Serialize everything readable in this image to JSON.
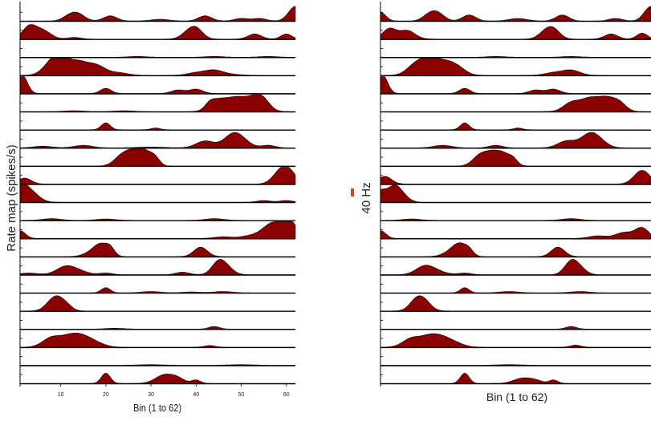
{
  "colors": {
    "fill": "#8b0000",
    "stroke": "#1a0000",
    "axis": "#000000",
    "scalebar": "#c0501a"
  },
  "chart_data": [
    {
      "type": "area",
      "title": "",
      "xlabel": "Bin (1 to 62)",
      "ylabel": "Rate map (spikes/s)",
      "xlim": [
        1,
        62
      ],
      "xticks": [
        10,
        20,
        30,
        40,
        50,
        60
      ],
      "grid": false,
      "row_ymax": 1,
      "series": [
        {
          "peaks": [
            [
              12,
              0.3,
              1.5
            ],
            [
              14,
              0.35,
              1.5
            ],
            [
              21,
              0.3,
              1.5
            ],
            [
              32,
              0.1,
              2
            ],
            [
              42,
              0.3,
              1.5
            ],
            [
              50,
              0.15,
              1.5
            ],
            [
              54,
              0.15,
              1.5
            ],
            [
              62,
              0.85,
              1.5
            ]
          ]
        },
        {
          "peaks": [
            [
              3,
              0.7,
              1.5
            ],
            [
              6,
              0.5,
              1.8
            ],
            [
              13,
              0.1,
              1.5
            ],
            [
              38,
              0.3,
              1.5
            ],
            [
              40,
              0.6,
              1.5
            ],
            [
              53,
              0.3,
              1.5
            ],
            [
              60,
              0.3,
              1.2
            ]
          ]
        },
        {
          "peaks": [
            [
              27,
              0.05,
              2
            ],
            [
              44,
              0.05,
              2
            ],
            [
              56,
              0.05,
              2
            ]
          ]
        },
        {
          "peaks": [
            [
              8,
              0.55,
              2
            ],
            [
              10,
              0.8,
              2
            ],
            [
              14,
              0.7,
              2
            ],
            [
              18,
              0.55,
              2
            ],
            [
              23,
              0.15,
              2
            ],
            [
              40,
              0.15,
              2
            ],
            [
              44,
              0.3,
              2
            ],
            [
              48,
              0.05,
              2
            ]
          ]
        },
        {
          "peaks": [
            [
              1,
              0.8,
              1.2
            ],
            [
              2,
              0.4,
              1
            ],
            [
              20,
              0.3,
              1.2
            ],
            [
              36,
              0.2,
              1.5
            ],
            [
              40,
              0.25,
              1.5
            ]
          ]
        },
        {
          "peaks": [
            [
              43,
              0.25,
              1
            ],
            [
              45,
              0.65,
              2
            ],
            [
              49,
              0.7,
              2
            ],
            [
              53,
              0.75,
              2
            ],
            [
              55,
              0.4,
              1.5
            ],
            [
              13,
              0.05,
              2
            ],
            [
              24,
              0.05,
              2
            ]
          ]
        },
        {
          "peaks": [
            [
              20,
              0.4,
              1
            ],
            [
              31,
              0.1,
              1
            ]
          ]
        },
        {
          "peaks": [
            [
              6,
              0.1,
              2
            ],
            [
              15,
              0.15,
              2
            ],
            [
              30,
              0.05,
              3
            ],
            [
              42,
              0.4,
              2
            ],
            [
              48,
              0.65,
              2
            ],
            [
              50,
              0.35,
              2
            ],
            [
              56,
              0.15,
              1.5
            ]
          ]
        },
        {
          "peaks": [
            [
              23,
              0.35,
              1.5
            ],
            [
              26,
              0.9,
              2
            ],
            [
              29,
              0.6,
              1.5
            ],
            [
              31,
              0.35,
              1
            ]
          ]
        },
        {
          "peaks": [
            [
              2,
              0.35,
              1.5
            ],
            [
              59,
              0.85,
              1.8
            ],
            [
              61,
              0.4,
              1.5
            ]
          ]
        },
        {
          "peaks": [
            [
              1,
              0.9,
              1.2
            ],
            [
              3,
              0.6,
              1.5
            ],
            [
              5,
              0.15,
              1.5
            ],
            [
              55,
              0.1,
              1.5
            ],
            [
              60,
              0.1,
              1.5
            ]
          ]
        },
        {
          "peaks": [
            [
              8,
              0.1,
              2
            ],
            [
              20,
              0.08,
              2
            ],
            [
              44,
              0.1,
              2
            ]
          ]
        },
        {
          "peaks": [
            [
              1,
              0.45,
              1.2
            ],
            [
              46,
              0.1,
              2
            ],
            [
              52,
              0.15,
              2
            ],
            [
              56,
              0.45,
              2
            ],
            [
              58,
              0.6,
              2
            ],
            [
              61,
              0.85,
              1.5
            ]
          ]
        },
        {
          "peaks": [
            [
              17,
              0.25,
              1.8
            ],
            [
              19,
              0.6,
              1.5
            ],
            [
              21,
              0.4,
              1
            ],
            [
              41,
              0.55,
              1.5
            ]
          ]
        },
        {
          "peaks": [
            [
              3,
              0.1,
              2
            ],
            [
              11,
              0.45,
              2
            ],
            [
              14,
              0.2,
              2
            ],
            [
              20,
              0.1,
              1.5
            ],
            [
              37,
              0.15,
              1.5
            ],
            [
              45,
              0.75,
              1.5
            ],
            [
              47,
              0.3,
              1.5
            ]
          ]
        },
        {
          "peaks": [
            [
              20,
              0.3,
              1
            ],
            [
              30,
              0.08,
              2
            ],
            [
              39,
              0.05,
              2
            ],
            [
              46,
              0.08,
              2
            ]
          ]
        },
        {
          "peaks": [
            [
              8,
              0.5,
              1.5
            ],
            [
              10,
              0.6,
              1.5
            ],
            [
              12,
              0.1,
              1
            ]
          ]
        },
        {
          "peaks": [
            [
              22,
              0.05,
              2
            ],
            [
              44,
              0.15,
              1.2
            ]
          ]
        },
        {
          "peaks": [
            [
              8,
              0.55,
              2
            ],
            [
              12,
              0.55,
              2
            ],
            [
              15,
              0.5,
              2
            ],
            [
              18,
              0.2,
              2
            ],
            [
              43,
              0.1,
              1.2
            ]
          ]
        },
        {
          "peaks": [
            [
              30,
              0.04,
              3
            ],
            [
              50,
              0.04,
              3
            ]
          ]
        },
        {
          "peaks": [
            [
              20,
              0.6,
              1
            ],
            [
              33,
              0.5,
              2
            ],
            [
              36,
              0.25,
              1.5
            ],
            [
              40,
              0.2,
              1
            ]
          ]
        }
      ]
    },
    {
      "type": "area",
      "title": "",
      "xlabel": "Bin (1 to 62)",
      "ylabel": "",
      "xlim": [
        1,
        62
      ],
      "xticks": [],
      "grid": false,
      "row_ymax": 1,
      "scalebar_label": "40 Hz",
      "series": [
        {
          "peaks": [
            [
              1,
              0.5,
              1.2
            ],
            [
              12,
              0.35,
              1.5
            ],
            [
              14,
              0.4,
              1.5
            ],
            [
              21,
              0.35,
              1.5
            ],
            [
              32,
              0.15,
              2
            ],
            [
              42,
              0.35,
              1.5
            ],
            [
              54,
              0.15,
              1.5
            ],
            [
              62,
              0.85,
              1.5
            ]
          ]
        },
        {
          "peaks": [
            [
              3,
              0.6,
              1.5
            ],
            [
              7,
              0.5,
              1.8
            ],
            [
              38,
              0.35,
              1.5
            ],
            [
              40,
              0.55,
              1.5
            ],
            [
              53,
              0.3,
              1.5
            ],
            [
              60,
              0.35,
              1.2
            ]
          ]
        },
        {
          "peaks": [
            [
              27,
              0.05,
              2
            ],
            [
              44,
              0.05,
              2
            ]
          ]
        },
        {
          "peaks": [
            [
              9,
              0.6,
              2
            ],
            [
              12,
              0.7,
              2
            ],
            [
              15,
              0.55,
              2
            ],
            [
              18,
              0.5,
              2
            ],
            [
              40,
              0.15,
              2
            ],
            [
              44,
              0.3,
              2
            ]
          ]
        },
        {
          "peaks": [
            [
              1,
              0.8,
              1.2
            ],
            [
              2,
              0.4,
              1
            ],
            [
              20,
              0.3,
              1.2
            ],
            [
              36,
              0.2,
              1.5
            ],
            [
              40,
              0.25,
              1.5
            ]
          ]
        },
        {
          "peaks": [
            [
              44,
              0.5,
              1.8
            ],
            [
              48,
              0.7,
              2
            ],
            [
              52,
              0.75,
              2
            ],
            [
              55,
              0.4,
              1.5
            ]
          ]
        },
        {
          "peaks": [
            [
              20,
              0.4,
              1
            ],
            [
              32,
              0.1,
              1
            ]
          ]
        },
        {
          "peaks": [
            [
              15,
              0.15,
              2
            ],
            [
              27,
              0.15,
              1.5
            ],
            [
              43,
              0.4,
              2
            ],
            [
              48,
              0.65,
              2
            ],
            [
              50,
              0.35,
              2
            ]
          ]
        },
        {
          "peaks": [
            [
              23,
              0.4,
              1.5
            ],
            [
              26,
              0.8,
              2
            ],
            [
              29,
              0.5,
              1.5
            ],
            [
              31,
              0.3,
              1
            ]
          ]
        },
        {
          "peaks": [
            [
              2,
              0.45,
              1.5
            ],
            [
              60,
              0.8,
              1.8
            ]
          ]
        },
        {
          "peaks": [
            [
              1,
              0.6,
              1.2
            ],
            [
              4,
              0.85,
              1.5
            ],
            [
              6,
              0.3,
              1.5
            ]
          ]
        },
        {
          "peaks": [
            [
              8,
              0.08,
              2
            ],
            [
              44,
              0.1,
              2
            ]
          ]
        },
        {
          "peaks": [
            [
              1,
              0.45,
              1.2
            ],
            [
              50,
              0.15,
              2
            ],
            [
              56,
              0.35,
              2
            ],
            [
              60,
              0.6,
              1.5
            ]
          ]
        },
        {
          "peaks": [
            [
              17,
              0.3,
              1.8
            ],
            [
              19,
              0.6,
              1.5
            ],
            [
              21,
              0.3,
              1
            ],
            [
              41,
              0.55,
              1.5
            ]
          ]
        },
        {
          "peaks": [
            [
              11,
              0.5,
              2
            ],
            [
              14,
              0.15,
              2
            ],
            [
              20,
              0.1,
              1.5
            ],
            [
              44,
              0.75,
              1.5
            ],
            [
              46,
              0.3,
              1.5
            ]
          ]
        },
        {
          "peaks": [
            [
              20,
              0.3,
              1
            ],
            [
              30,
              0.08,
              2
            ],
            [
              46,
              0.08,
              2
            ]
          ]
        },
        {
          "peaks": [
            [
              9,
              0.6,
              1.5
            ],
            [
              11,
              0.5,
              1.5
            ]
          ]
        },
        {
          "peaks": [
            [
              44,
              0.15,
              1.2
            ]
          ]
        },
        {
          "peaks": [
            [
              8,
              0.5,
              2
            ],
            [
              12,
              0.55,
              2
            ],
            [
              15,
              0.45,
              2
            ],
            [
              18,
              0.2,
              2
            ],
            [
              45,
              0.12,
              1.2
            ]
          ]
        },
        {
          "peaks": [
            [
              30,
              0.04,
              3
            ]
          ]
        },
        {
          "peaks": [
            [
              20,
              0.6,
              1
            ],
            [
              33,
              0.3,
              2
            ],
            [
              36,
              0.15,
              1.5
            ],
            [
              40,
              0.2,
              1
            ]
          ]
        }
      ]
    }
  ]
}
